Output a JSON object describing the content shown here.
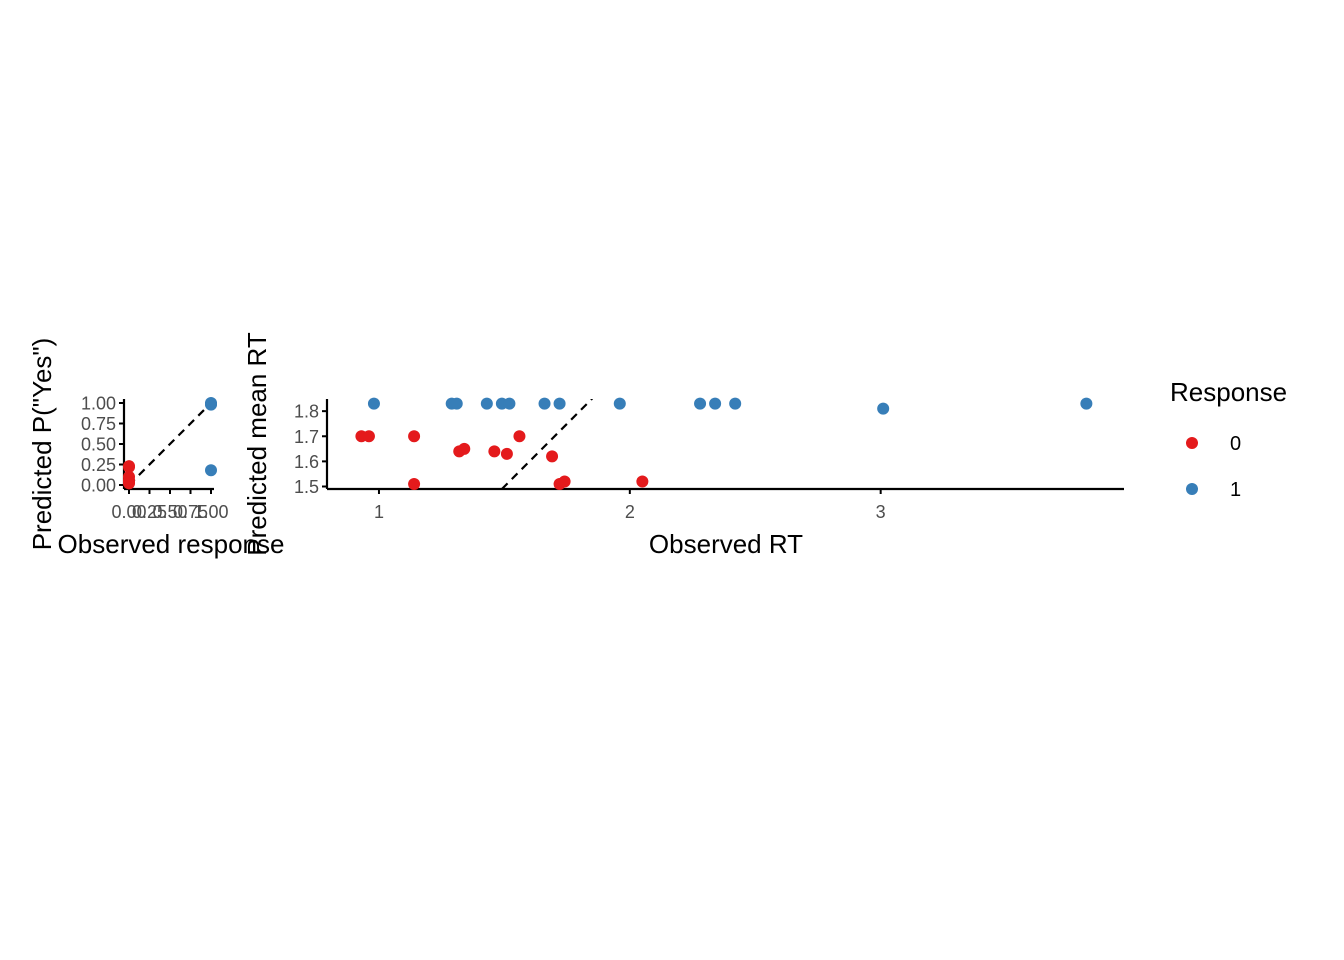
{
  "colors": {
    "0": "#E41A1C",
    "1": "#377EB8"
  },
  "legend": {
    "title": "Response",
    "entries": [
      {
        "label": "0",
        "color": "#E41A1C"
      },
      {
        "label": "1",
        "color": "#377EB8"
      }
    ]
  },
  "chart_data": [
    {
      "type": "scatter",
      "xlabel": "Observed response",
      "ylabel": "Predicted P(\"Yes\")",
      "xlim": [
        0,
        1
      ],
      "ylim": [
        0,
        1
      ],
      "xticks": [
        "0.00",
        "0.25",
        "0.50",
        "0.75",
        "1.00"
      ],
      "yticks": [
        "0.00",
        "0.25",
        "0.50",
        "0.75",
        "1.00"
      ],
      "reference_line": "y = x (dashed)",
      "series": [
        {
          "name": "0",
          "points": [
            [
              0,
              0.23
            ],
            [
              0,
              0.22
            ],
            [
              0,
              0.1
            ],
            [
              0,
              0.06
            ],
            [
              0,
              0.04
            ],
            [
              0,
              0.03
            ],
            [
              0,
              0.02
            ]
          ]
        },
        {
          "name": "1",
          "points": [
            [
              1,
              1.0
            ],
            [
              1,
              0.99
            ],
            [
              1,
              0.98
            ],
            [
              1,
              0.18
            ]
          ]
        }
      ]
    },
    {
      "type": "scatter",
      "xlabel": "Observed RT",
      "ylabel": "Predicted mean RT",
      "xlim": [
        0.8,
        3.97
      ],
      "ylim": [
        1.49,
        1.85
      ],
      "xticks": [
        "1",
        "2",
        "3"
      ],
      "yticks": [
        "1.5",
        "1.6",
        "1.7",
        "1.8"
      ],
      "reference_line": "y = x (dashed)",
      "series": [
        {
          "name": "0",
          "points": [
            [
              0.93,
              1.7
            ],
            [
              0.96,
              1.7
            ],
            [
              1.14,
              1.7
            ],
            [
              1.14,
              1.51
            ],
            [
              1.32,
              1.64
            ],
            [
              1.34,
              1.65
            ],
            [
              1.46,
              1.64
            ],
            [
              1.51,
              1.63
            ],
            [
              1.56,
              1.7
            ],
            [
              1.69,
              1.62
            ],
            [
              1.72,
              1.51
            ],
            [
              1.74,
              1.52
            ],
            [
              2.05,
              1.52
            ]
          ]
        },
        {
          "name": "1",
          "points": [
            [
              0.98,
              1.83
            ],
            [
              1.29,
              1.83
            ],
            [
              1.31,
              1.83
            ],
            [
              1.43,
              1.83
            ],
            [
              1.49,
              1.83
            ],
            [
              1.52,
              1.83
            ],
            [
              1.66,
              1.83
            ],
            [
              1.72,
              1.83
            ],
            [
              1.96,
              1.83
            ],
            [
              2.28,
              1.83
            ],
            [
              2.34,
              1.83
            ],
            [
              2.42,
              1.83
            ],
            [
              3.01,
              1.81
            ],
            [
              3.82,
              1.83
            ]
          ]
        }
      ]
    }
  ]
}
